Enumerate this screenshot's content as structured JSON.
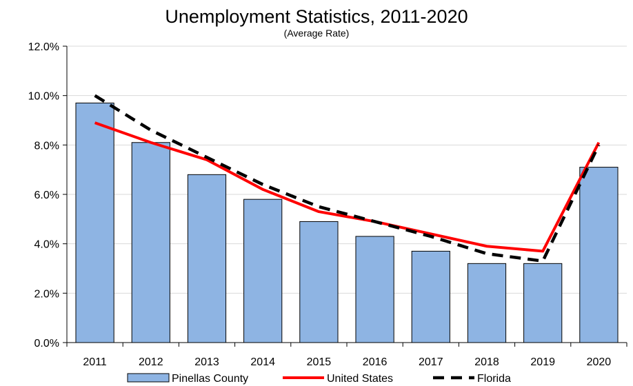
{
  "chart_data": {
    "type": "bar",
    "title": "Unemployment Statistics, 2011-2020",
    "subtitle": "(Average Rate)",
    "xlabel": "",
    "ylabel": "",
    "categories": [
      "2011",
      "2012",
      "2013",
      "2014",
      "2015",
      "2016",
      "2017",
      "2018",
      "2019",
      "2020"
    ],
    "ylim": [
      0,
      12
    ],
    "y_ticks": [
      0,
      2,
      4,
      6,
      8,
      10,
      12
    ],
    "y_tick_labels": [
      "0.0%",
      "2.0%",
      "4.0%",
      "6.0%",
      "8.0%",
      "10.0%",
      "12.0%"
    ],
    "grid": true,
    "legend_position": "bottom",
    "series": [
      {
        "name": "Pinellas County",
        "type": "bar",
        "color": "#8eb4e3",
        "values": [
          9.7,
          8.1,
          6.8,
          5.8,
          4.9,
          4.3,
          3.7,
          3.2,
          3.2,
          7.1
        ]
      },
      {
        "name": "United States",
        "type": "line",
        "style": "solid",
        "color": "#ff0000",
        "values": [
          8.9,
          8.1,
          7.4,
          6.2,
          5.3,
          4.9,
          4.4,
          3.9,
          3.7,
          8.1
        ]
      },
      {
        "name": "Florida",
        "type": "line",
        "style": "dashed",
        "color": "#000000",
        "values": [
          10.0,
          8.6,
          7.5,
          6.4,
          5.5,
          4.9,
          4.3,
          3.6,
          3.3,
          8.0
        ]
      }
    ]
  }
}
